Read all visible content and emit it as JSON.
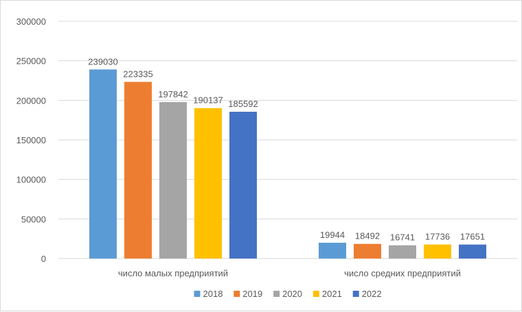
{
  "chart_data": {
    "type": "bar",
    "categories": [
      "число малых предприятий",
      "число средних предприятий"
    ],
    "series": [
      {
        "name": "2018",
        "values": [
          239030,
          19944
        ],
        "color": "#5B9BD5"
      },
      {
        "name": "2019",
        "values": [
          223335,
          18492
        ],
        "color": "#ED7D31"
      },
      {
        "name": "2020",
        "values": [
          197842,
          16741
        ],
        "color": "#A5A5A5"
      },
      {
        "name": "2021",
        "values": [
          190137,
          17736
        ],
        "color": "#FFC000"
      },
      {
        "name": "2022",
        "values": [
          185592,
          17651
        ],
        "color": "#4472C4"
      }
    ],
    "ylim": [
      0,
      300000
    ],
    "yticks": [
      0,
      50000,
      100000,
      150000,
      200000,
      250000,
      300000
    ],
    "ytick_labels": [
      "0",
      "50000",
      "100000",
      "150000",
      "200000",
      "250000",
      "300000"
    ],
    "data_labels": true,
    "grid": true,
    "legend_position": "bottom",
    "gridline_color": "#d9d9d9",
    "text_color": "#595959"
  }
}
